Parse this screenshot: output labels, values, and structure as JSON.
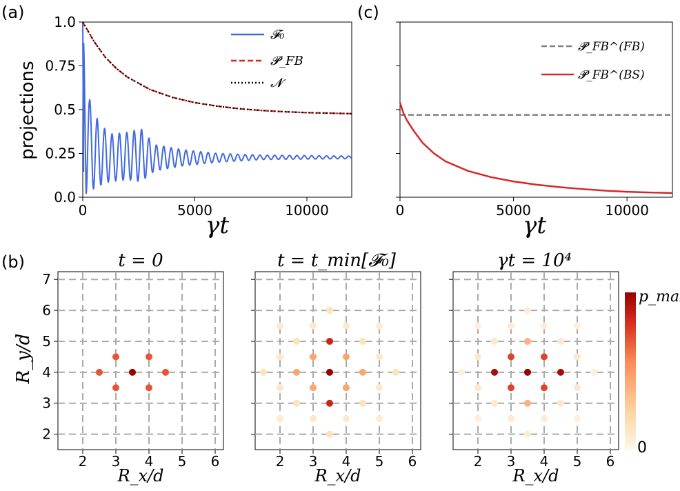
{
  "figure": {
    "panel_letters": [
      "(a)",
      "(b)",
      "(c)"
    ]
  },
  "chart_data": [
    {
      "id": "a",
      "type": "line",
      "ylabel": "projections",
      "xlabel": "γt",
      "xlim": [
        0,
        12000
      ],
      "ylim": [
        0,
        1.0
      ],
      "xticks": [
        0,
        5000,
        10000
      ],
      "yticks": [
        0.0,
        0.25,
        0.5,
        0.75,
        1.0
      ],
      "ytick_labels": [
        "0.0",
        "0.25",
        "0.5",
        "0.75",
        "1.0"
      ],
      "legend_placement": "top-right",
      "series": [
        {
          "name": "𝓕₀",
          "color": "#4169e1",
          "style": "solid",
          "description": "oscillating, decays from 1 then oscillates around 0.23",
          "envelope_max": [
            [
              0,
              1.0
            ],
            [
              300,
              0.56
            ],
            [
              700,
              0.43
            ],
            [
              1200,
              0.36
            ],
            [
              2000,
              0.37
            ],
            [
              2600,
              0.39
            ],
            [
              3200,
              0.3
            ],
            [
              4500,
              0.27
            ],
            [
              6000,
              0.25
            ],
            [
              8000,
              0.24
            ],
            [
              12000,
              0.235
            ]
          ],
          "envelope_min": [
            [
              0,
              1.0
            ],
            [
              150,
              0.02
            ],
            [
              600,
              0.06
            ],
            [
              1200,
              0.09
            ],
            [
              2000,
              0.1
            ],
            [
              2600,
              0.09
            ],
            [
              3200,
              0.15
            ],
            [
              4500,
              0.18
            ],
            [
              6000,
              0.2
            ],
            [
              8000,
              0.215
            ],
            [
              12000,
              0.22
            ]
          ],
          "period": 330
        },
        {
          "name": "𝓟_FB",
          "color": "#e0201b",
          "style": "dashed",
          "x": [
            0,
            500,
            1000,
            1500,
            2000,
            3000,
            4000,
            5000,
            6000,
            7000,
            8000,
            9000,
            10000,
            11000,
            12000
          ],
          "y": [
            1.0,
            0.89,
            0.8,
            0.735,
            0.685,
            0.615,
            0.57,
            0.54,
            0.52,
            0.505,
            0.495,
            0.488,
            0.483,
            0.48,
            0.477
          ]
        },
        {
          "name": "𝓝",
          "color": "#000000",
          "style": "dotted",
          "x": [
            0,
            500,
            1000,
            1500,
            2000,
            3000,
            4000,
            5000,
            6000,
            7000,
            8000,
            9000,
            10000,
            11000,
            12000
          ],
          "y": [
            1.0,
            0.89,
            0.8,
            0.735,
            0.685,
            0.615,
            0.57,
            0.54,
            0.52,
            0.505,
            0.495,
            0.488,
            0.483,
            0.48,
            0.477
          ]
        }
      ]
    },
    {
      "id": "c",
      "type": "line",
      "xlabel": "γt",
      "xlim": [
        0,
        12000
      ],
      "ylim": [
        0,
        1.0
      ],
      "xticks": [
        0,
        5000,
        10000
      ],
      "yticks": [
        0.0,
        0.25,
        0.5,
        0.75,
        1.0
      ],
      "legend_placement": "top-right",
      "series": [
        {
          "name": "𝓟_FB^(FB)",
          "color": "#808080",
          "style": "dashed",
          "x": [
            0,
            12000
          ],
          "y": [
            0.47,
            0.47
          ]
        },
        {
          "name": "𝓟_FB^(BS)",
          "color": "#d62728",
          "style": "solid",
          "x": [
            0,
            150,
            300,
            600,
            1000,
            1500,
            2000,
            3000,
            4000,
            5000,
            6000,
            7000,
            8000,
            9000,
            10000,
            11000,
            12000
          ],
          "y": [
            0.54,
            0.48,
            0.44,
            0.38,
            0.31,
            0.25,
            0.205,
            0.15,
            0.115,
            0.09,
            0.072,
            0.058,
            0.047,
            0.038,
            0.031,
            0.027,
            0.024
          ]
        }
      ]
    },
    {
      "id": "b",
      "type": "scatter",
      "xlabel": "R_x/d",
      "ylabel": "R_y/d",
      "xlim": [
        1.25,
        6.25
      ],
      "ylim": [
        1.5,
        7.25
      ],
      "xticks": [
        2,
        3,
        4,
        5,
        6
      ],
      "yticks": [
        2,
        3,
        4,
        5,
        6,
        7
      ],
      "colorbar": {
        "top_label": "p_max",
        "bottom_label": "0",
        "colors": [
          "#fff6ea",
          "#fdd49e",
          "#fc8d59",
          "#d7301f",
          "#990000"
        ]
      },
      "subplots": [
        {
          "title": "t = 0",
          "points": [
            [
              3.5,
              4,
              1.0
            ],
            [
              3,
              4.5,
              0.7
            ],
            [
              4,
              4.5,
              0.7
            ],
            [
              3,
              3.5,
              0.7
            ],
            [
              4,
              3.5,
              0.7
            ],
            [
              2.5,
              4,
              0.7
            ],
            [
              4.5,
              4,
              0.7
            ]
          ]
        },
        {
          "title": "t = t_min[𝓕₀]",
          "points": [
            [
              3.5,
              4,
              1.0
            ],
            [
              3.5,
              5,
              0.85
            ],
            [
              3.5,
              3,
              0.85
            ],
            [
              3,
              4.5,
              0.45
            ],
            [
              4,
              4.5,
              0.45
            ],
            [
              3,
              3.5,
              0.45
            ],
            [
              4,
              3.5,
              0.45
            ],
            [
              2.5,
              4,
              0.45
            ],
            [
              4.5,
              4,
              0.45
            ],
            [
              3.5,
              6,
              0.15
            ],
            [
              3.5,
              2,
              0.15
            ],
            [
              3,
              5.5,
              0.1
            ],
            [
              4,
              5.5,
              0.1
            ],
            [
              3,
              2.5,
              0.1
            ],
            [
              4,
              2.5,
              0.1
            ],
            [
              2,
              5.5,
              0.08
            ],
            [
              5,
              5.5,
              0.08
            ],
            [
              2,
              2.5,
              0.08
            ],
            [
              5,
              2.5,
              0.08
            ],
            [
              2.5,
              5,
              0.15
            ],
            [
              4.5,
              5,
              0.15
            ],
            [
              2.5,
              3,
              0.15
            ],
            [
              4.5,
              3,
              0.15
            ],
            [
              2,
              4.5,
              0.1
            ],
            [
              5,
              4.5,
              0.1
            ],
            [
              2,
              3.5,
              0.1
            ],
            [
              5,
              3.5,
              0.1
            ],
            [
              1.5,
              4,
              0.15
            ],
            [
              5.5,
              4,
              0.15
            ]
          ]
        },
        {
          "title": "γt = 10⁴",
          "points": [
            [
              3.5,
              4,
              1.0
            ],
            [
              2.5,
              4,
              0.95
            ],
            [
              4.5,
              4,
              0.95
            ],
            [
              3,
              4.5,
              0.75
            ],
            [
              4,
              4.5,
              0.75
            ],
            [
              3,
              3.5,
              0.75
            ],
            [
              4,
              3.5,
              0.75
            ],
            [
              3.5,
              5,
              0.4
            ],
            [
              3.5,
              3,
              0.4
            ],
            [
              3.5,
              6,
              0.08
            ],
            [
              3.5,
              2,
              0.08
            ],
            [
              3,
              5.5,
              0.08
            ],
            [
              4,
              5.5,
              0.08
            ],
            [
              3,
              2.5,
              0.08
            ],
            [
              4,
              2.5,
              0.08
            ],
            [
              2,
              5.5,
              0.05
            ],
            [
              5,
              5.5,
              0.05
            ],
            [
              2,
              2.5,
              0.05
            ],
            [
              5,
              2.5,
              0.05
            ],
            [
              2.5,
              5,
              0.1
            ],
            [
              4.5,
              5,
              0.1
            ],
            [
              2.5,
              3,
              0.1
            ],
            [
              4.5,
              3,
              0.1
            ],
            [
              2,
              4.5,
              0.1
            ],
            [
              5,
              4.5,
              0.1
            ],
            [
              2,
              3.5,
              0.1
            ],
            [
              5,
              3.5,
              0.1
            ],
            [
              1.5,
              4,
              0.05
            ],
            [
              5.5,
              4,
              0.05
            ]
          ]
        }
      ]
    }
  ]
}
